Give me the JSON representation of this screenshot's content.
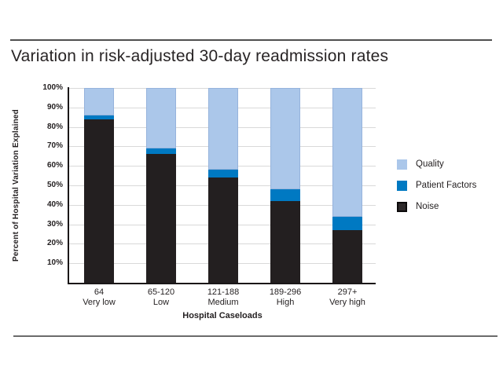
{
  "page": {
    "title": "Variation in risk-adjusted 30-day readmission rates"
  },
  "chart_data": {
    "type": "bar",
    "variant": "stacked-percent",
    "title": "Variation in risk-adjusted 30-day readmission rates",
    "xlabel": "Hospital Caseloads",
    "ylabel": "Percent of Hospital Variation Explained",
    "ylim": [
      0,
      100
    ],
    "y_tick_labels": [
      "100%",
      "90%",
      "80%",
      "70%",
      "60%",
      "50%",
      "40%",
      "30%",
      "20%",
      "10%"
    ],
    "grid": true,
    "legend_position": "right",
    "categories": [
      {
        "range": "64",
        "level": "Very low"
      },
      {
        "range": "65-120",
        "level": "Low"
      },
      {
        "range": "121-188",
        "level": "Medium"
      },
      {
        "range": "189-296",
        "level": "High"
      },
      {
        "range": "297+",
        "level": "Very high"
      }
    ],
    "series": [
      {
        "name": "Noise",
        "color": "#231f20",
        "values": [
          84,
          66,
          54,
          42,
          27
        ]
      },
      {
        "name": "Patient Factors",
        "color": "#0079c2",
        "values": [
          2,
          3,
          4,
          6,
          7
        ]
      },
      {
        "name": "Quality",
        "color": "#abc7ea",
        "values": [
          14,
          31,
          42,
          52,
          66
        ]
      }
    ],
    "legend": [
      "Quality",
      "Patient Factors",
      "Noise"
    ]
  },
  "colors": {
    "quality": "#abc7ea",
    "patient_factors": "#0079c2",
    "noise": "#231f20",
    "gridline": "#d9d9d9",
    "axis": "#1a1718",
    "rule": "#4f4f4f",
    "text": "#231f20",
    "background": "#ffffff"
  }
}
